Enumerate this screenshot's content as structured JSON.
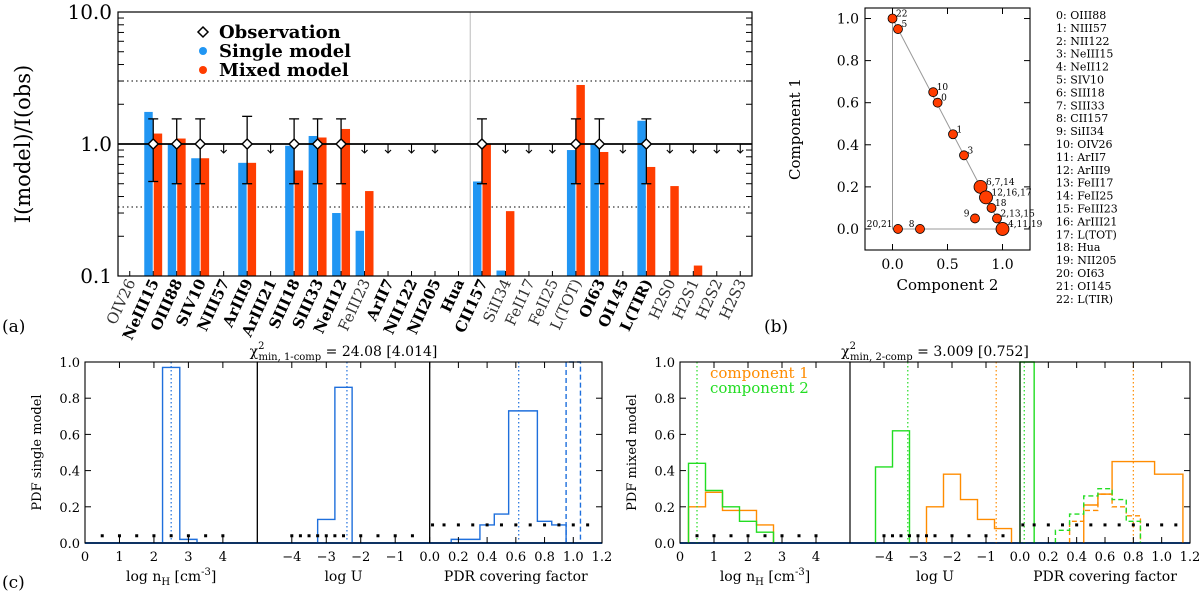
{
  "panel_labels": [
    "(a)",
    "(b)",
    "(c)"
  ],
  "chart_data": [
    {
      "id": "a",
      "type": "bar",
      "yscale": "log",
      "ylim": [
        0.1,
        10
      ],
      "ylabel": "I(model)/I(obs)",
      "yticks": [
        0.1,
        1.0,
        10.0
      ],
      "ytick_labels": [
        "0.1",
        "1.0",
        "10.0"
      ],
      "reference_lines": {
        "solid": 1.0,
        "dotted": [
          0.333,
          3.0
        ]
      },
      "legend": {
        "position": "top-left",
        "items": [
          {
            "label": "Observation",
            "marker": "diamond",
            "color": "#000000"
          },
          {
            "label": "Single model",
            "marker": "dot",
            "color": "#2196f3"
          },
          {
            "label": "Mixed model",
            "marker": "dot",
            "color": "#ff3d00"
          }
        ]
      },
      "categories": [
        "OIV26",
        "NeIII15",
        "OIII88",
        "SIV10",
        "NIII57",
        "ArIII9",
        "ArIII21",
        "SIII18",
        "SIII33",
        "NeII12",
        "FeIII23",
        "ArII7",
        "NII122",
        "NII205",
        "Hua",
        "CII157",
        "SiII34",
        "FeII17",
        "FeII25",
        "L(TOT)",
        "OI63",
        "OI145",
        "L(TIR)",
        "H2S0",
        "H2S1",
        "H2S2",
        "H2S3"
      ],
      "bold_categories": [
        "NeIII15",
        "OIII88",
        "SIV10",
        "NIII57",
        "ArIII9",
        "ArIII21",
        "SIII18",
        "SIII33",
        "NeII12",
        "ArII7",
        "NII122",
        "NII205",
        "Hua",
        "CII157",
        "OI63",
        "OI145",
        "L(TIR)"
      ],
      "separator_after_index": 14,
      "series": [
        {
          "name": "Single model",
          "color": "#2196f3",
          "values": [
            null,
            1.75,
            1.0,
            0.78,
            null,
            0.72,
            null,
            0.97,
            1.15,
            0.3,
            0.22,
            null,
            null,
            null,
            null,
            0.52,
            0.11,
            null,
            null,
            0.9,
            1.0,
            null,
            1.5,
            null,
            null,
            null,
            null
          ]
        },
        {
          "name": "Mixed model",
          "color": "#ff3d00",
          "values": [
            null,
            1.2,
            1.1,
            0.78,
            null,
            0.72,
            null,
            0.63,
            1.12,
            1.3,
            0.44,
            null,
            null,
            null,
            null,
            1.0,
            0.31,
            null,
            null,
            2.8,
            0.87,
            null,
            0.67,
            0.48,
            0.12,
            null,
            null
          ]
        }
      ],
      "observations": [
        {
          "index": 1,
          "value": 1.0,
          "lo": 0.52,
          "hi": 1.55
        },
        {
          "index": 2,
          "value": 1.0,
          "lo": 0.5,
          "hi": 1.55
        },
        {
          "index": 3,
          "value": 1.0,
          "lo": 0.5,
          "hi": 1.55
        },
        {
          "index": 5,
          "value": 1.0,
          "lo": 0.5,
          "hi": 1.62
        },
        {
          "index": 7,
          "value": 1.0,
          "lo": 0.5,
          "hi": 1.55
        },
        {
          "index": 8,
          "value": 1.0,
          "lo": 0.5,
          "hi": 1.55
        },
        {
          "index": 9,
          "value": 1.0,
          "lo": 0.5,
          "hi": 1.55
        },
        {
          "index": 15,
          "value": 1.0,
          "lo": 0.5,
          "hi": 1.55
        },
        {
          "index": 19,
          "value": 1.0,
          "lo": 0.5,
          "hi": 1.55
        },
        {
          "index": 20,
          "value": 1.0,
          "lo": 0.5,
          "hi": 1.55
        },
        {
          "index": 22,
          "value": 1.0,
          "lo": 0.5,
          "hi": 1.55
        }
      ],
      "upper_limits_indices": [
        4,
        6,
        10,
        11,
        12,
        13,
        16,
        17,
        18,
        21,
        23,
        24,
        25,
        26
      ]
    },
    {
      "id": "b",
      "type": "scatter",
      "xlabel": "Component 2",
      "ylabel": "Component 1",
      "xlim": [
        -0.25,
        1.25
      ],
      "ylim": [
        -0.1,
        1.05
      ],
      "xticks": [
        0.0,
        0.5,
        1.0
      ],
      "xtick_labels": [
        "0.0",
        "0.5",
        "1.0"
      ],
      "yticks": [
        0.0,
        0.2,
        0.4,
        0.6,
        0.8,
        1.0
      ],
      "ytick_labels": [
        "0.0",
        "0.2",
        "0.4",
        "0.6",
        "0.8",
        "1.0"
      ],
      "triangle": [
        [
          0,
          0
        ],
        [
          1,
          0
        ],
        [
          0,
          1
        ]
      ],
      "points": [
        {
          "label": "22",
          "x": 0.0,
          "y": 1.0,
          "size": 1
        },
        {
          "label": "5",
          "x": 0.05,
          "y": 0.95,
          "size": 1
        },
        {
          "label": "10",
          "x": 0.37,
          "y": 0.65,
          "size": 1
        },
        {
          "label": "0",
          "x": 0.41,
          "y": 0.6,
          "size": 1
        },
        {
          "label": "1",
          "x": 0.55,
          "y": 0.45,
          "size": 1
        },
        {
          "label": "3",
          "x": 0.65,
          "y": 0.35,
          "size": 1
        },
        {
          "label": "6,7,14",
          "x": 0.8,
          "y": 0.2,
          "size": 2
        },
        {
          "label": "12,16,17",
          "x": 0.85,
          "y": 0.15,
          "size": 2
        },
        {
          "label": "18",
          "x": 0.9,
          "y": 0.1,
          "size": 1
        },
        {
          "label": "9",
          "x": 0.75,
          "y": 0.05,
          "size": 1
        },
        {
          "label": "2,13,15",
          "x": 0.95,
          "y": 0.05,
          "size": 1
        },
        {
          "label": "4,11,19",
          "x": 1.0,
          "y": 0.0,
          "size": 2
        },
        {
          "label": "20,21",
          "x": 0.05,
          "y": 0.0,
          "size": 1
        },
        {
          "label": "8",
          "x": 0.25,
          "y": 0.0,
          "size": 1
        }
      ],
      "legend_list": [
        "0: OIII88",
        "1: NIII57",
        "2: NII122",
        "3: NeIII15",
        "4: NeII12",
        "5: SIV10",
        "6: SIII18",
        "7: SIII33",
        "8: CII157",
        "9: SiII34",
        "10: OIV26",
        "11:   ArII7",
        "12: ArIII9",
        "13: FeII17",
        "14: FeII25",
        "15: FeIII23",
        "16: ArIII21",
        "17: L(TOT)",
        "18:   Hua",
        "19: NII205",
        "20: OI63",
        "21: OI145",
        "22: L(TIR)"
      ]
    },
    {
      "id": "c-left",
      "type": "histogram",
      "title_main": "χ",
      "title_sup": "2",
      "title_sub": "min, 1-comp",
      "title_value": " = 24.08 [4.014]",
      "ylabel": "PDF single model",
      "ylim": [
        0,
        1.0
      ],
      "yticks": [
        0.0,
        0.2,
        0.4,
        0.6,
        0.8,
        1.0
      ],
      "ytick_labels": [
        "0.0",
        "0.2",
        "0.4",
        "0.6",
        "0.8",
        "1.0"
      ],
      "subplots": [
        {
          "xlabel": "log n",
          "xlabel_sub": "H",
          "xlabel_unit": " [cm",
          "xlabel_sup": "-3",
          "xlabel_end": "]",
          "xlim": [
            0,
            5
          ],
          "xticks": [
            0,
            1,
            2,
            3,
            4
          ],
          "xtick_labels": [
            "0",
            "1",
            "2",
            "3",
            "4"
          ],
          "series": [
            {
              "color": "#1e6fdc",
              "style": "solid",
              "edges": [
                2.25,
                2.75,
                3.25
              ],
              "values": [
                0.97,
                0.02
              ]
            }
          ],
          "markers_x": [
            0.5,
            1.0,
            1.5,
            2.0,
            2.5,
            3.0,
            3.5,
            4.0
          ],
          "markers_y": 0.04,
          "vlines": [
            {
              "x": 2.5,
              "style": "dotted",
              "color": "#1e6fdc"
            }
          ]
        },
        {
          "xlabel": "log U",
          "xlim": [
            -5,
            0
          ],
          "xticks": [
            -4,
            -3,
            -2,
            -1
          ],
          "xtick_labels": [
            "−4",
            "−3",
            "−2",
            "−1"
          ],
          "series": [
            {
              "color": "#1e6fdc",
              "style": "solid",
              "edges": [
                -3.25,
                -2.75,
                -2.25
              ],
              "values": [
                0.13,
                0.86
              ]
            }
          ],
          "markers_x": [
            -4.0,
            -3.75,
            -3.5,
            -3.25,
            -3.0,
            -2.75,
            -2.5,
            -2.0,
            -1.5,
            -1.0,
            -0.5
          ],
          "markers_y": 0.04,
          "vlines": [
            {
              "x": -2.4,
              "style": "dotted",
              "color": "#1e6fdc"
            }
          ]
        },
        {
          "xlabel": "PDR covering factor",
          "xlim": [
            0,
            1.2
          ],
          "xticks": [
            0,
            0.2,
            0.4,
            0.6,
            0.8,
            1.0,
            1.2
          ],
          "xtick_labels": [
            "0.0",
            "0.2",
            "0.4",
            "0.6",
            "0.8",
            "1.0",
            "1.2"
          ],
          "series": [
            {
              "color": "#1e6fdc",
              "style": "solid",
              "edges": [
                0.05,
                0.15,
                0.25,
                0.35,
                0.45,
                0.55,
                0.65,
                0.75,
                0.85,
                0.95
              ],
              "values": [
                0.0,
                0.02,
                0.02,
                0.1,
                0.16,
                0.73,
                0.73,
                0.12,
                0.1
              ]
            },
            {
              "color": "#1e6fdc",
              "style": "dashed",
              "edges": [
                0.95,
                1.05
              ],
              "values": [
                1.0
              ]
            }
          ],
          "markers_x": [
            0.02,
            0.1,
            0.2,
            0.3,
            0.4,
            0.5,
            0.6,
            0.7,
            0.8,
            0.9,
            1.0,
            1.1
          ],
          "markers_y": 0.1,
          "vlines": [
            {
              "x": 0.62,
              "style": "dotted",
              "color": "#1e6fdc"
            }
          ]
        }
      ]
    },
    {
      "id": "c-right",
      "type": "histogram",
      "title_main": "χ",
      "title_sup": "2",
      "title_sub": "min, 2-comp",
      "title_value": " = 3.009 [0.752]",
      "ylabel": "PDF mixed model",
      "ylim": [
        0,
        1.0
      ],
      "yticks": [
        0.0,
        0.2,
        0.4,
        0.6,
        0.8,
        1.0
      ],
      "ytick_labels": [
        "0.0",
        "0.2",
        "0.4",
        "0.6",
        "0.8",
        "1.0"
      ],
      "legend": [
        {
          "label": "component 1",
          "color": "#ff8c00"
        },
        {
          "label": "component 2",
          "color": "#22dd22"
        }
      ],
      "subplots": [
        {
          "xlabel": "log n",
          "xlabel_sub": "H",
          "xlabel_unit": " [cm",
          "xlabel_sup": "-3",
          "xlabel_end": "]",
          "xlim": [
            0,
            5
          ],
          "xticks": [
            0,
            1,
            2,
            3,
            4
          ],
          "xtick_labels": [
            "0",
            "1",
            "2",
            "3",
            "4"
          ],
          "series": [
            {
              "color": "#ff8c00",
              "style": "solid",
              "edges": [
                0.25,
                0.75,
                1.25,
                1.75,
                2.25,
                2.75
              ],
              "values": [
                0.2,
                0.28,
                0.18,
                0.18,
                0.1
              ]
            },
            {
              "color": "#22dd22",
              "style": "solid",
              "edges": [
                0.25,
                0.75,
                1.25,
                1.75,
                2.25,
                2.75
              ],
              "values": [
                0.44,
                0.29,
                0.2,
                0.12,
                0.06
              ]
            }
          ],
          "markers_x": [
            0.5,
            1.0,
            1.5,
            2.0,
            2.5,
            3.0,
            3.5,
            4.0
          ],
          "markers_y": 0.04,
          "vlines": [
            {
              "x": 0.5,
              "style": "dotted",
              "color": "#22dd22"
            }
          ]
        },
        {
          "xlabel": "log U",
          "xlim": [
            -5,
            0
          ],
          "xticks": [
            -4,
            -3,
            -2,
            -1
          ],
          "xtick_labels": [
            "−4",
            "−3",
            "−2",
            "−1"
          ],
          "series": [
            {
              "color": "#22dd22",
              "style": "solid",
              "edges": [
                -4.25,
                -3.75,
                -3.25
              ],
              "values": [
                0.42,
                0.62
              ]
            },
            {
              "color": "#ff8c00",
              "style": "solid",
              "edges": [
                -2.75,
                -2.25,
                -1.75,
                -1.25,
                -0.75,
                -0.25
              ],
              "values": [
                0.2,
                0.38,
                0.24,
                0.13,
                0.08
              ]
            }
          ],
          "markers_x": [
            -4.0,
            -3.75,
            -3.5,
            -3.25,
            -3.0,
            -2.75,
            -2.5,
            -2.0,
            -1.5,
            -1.0,
            -0.5
          ],
          "markers_y": 0.04,
          "vlines": [
            {
              "x": -3.3,
              "style": "dotted",
              "color": "#22dd22"
            },
            {
              "x": -0.7,
              "style": "dotted",
              "color": "#ff8c00"
            }
          ]
        },
        {
          "xlabel": "PDR covering factor",
          "xlim": [
            0,
            1.2
          ],
          "xticks": [
            0,
            0.2,
            0.4,
            0.6,
            0.8,
            1.0,
            1.2
          ],
          "xtick_labels": [
            "0.0",
            "0.2",
            "0.4",
            "0.6",
            "0.8",
            "1.0",
            "1.2"
          ],
          "series": [
            {
              "color": "#22dd22",
              "style": "solid",
              "edges": [
                0.0,
                0.1
              ],
              "values": [
                1.0
              ]
            },
            {
              "color": "#ff8c00",
              "style": "solid",
              "edges": [
                0.45,
                0.55,
                0.65,
                0.95,
                1.15
              ],
              "values": [
                0.21,
                0.27,
                0.45,
                0.38
              ]
            },
            {
              "color": "#ff8c00",
              "style": "dashed",
              "edges": [
                0.35,
                0.45,
                0.55,
                0.65,
                0.75,
                0.85
              ],
              "values": [
                0.12,
                0.18,
                0.27,
                0.2,
                0.15
              ]
            },
            {
              "color": "#22dd22",
              "style": "dashed",
              "edges": [
                0.25,
                0.35,
                0.45,
                0.55,
                0.65,
                0.75,
                0.85
              ],
              "values": [
                0.07,
                0.16,
                0.26,
                0.3,
                0.24,
                0.12
              ]
            }
          ],
          "markers_x": [
            0.02,
            0.1,
            0.2,
            0.3,
            0.4,
            0.5,
            0.6,
            0.7,
            0.8,
            0.9,
            1.0,
            1.1
          ],
          "markers_y": 0.1,
          "vlines": [
            {
              "x": 0.03,
              "style": "dotted",
              "color": "#22dd22"
            },
            {
              "x": 0.8,
              "style": "dotted",
              "color": "#ff8c00"
            }
          ]
        }
      ]
    }
  ]
}
